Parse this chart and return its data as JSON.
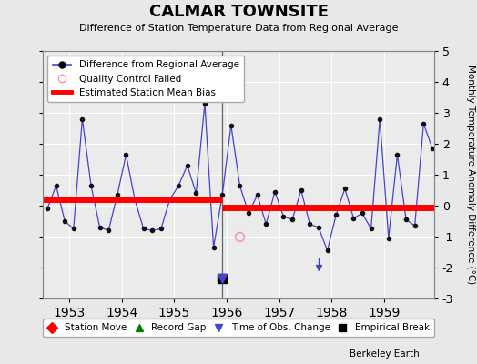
{
  "title": "CALMAR TOWNSITE",
  "subtitle": "Difference of Station Temperature Data from Regional Average",
  "ylabel": "Monthly Temperature Anomaly Difference (°C)",
  "credit": "Berkeley Earth",
  "ylim": [
    -3,
    5
  ],
  "xlim": [
    1952.5,
    1959.95
  ],
  "yticks": [
    -3,
    -2,
    -1,
    0,
    1,
    2,
    3,
    4,
    5
  ],
  "xticks": [
    1953,
    1954,
    1955,
    1956,
    1957,
    1958,
    1959
  ],
  "bg_color": "#e8e8e8",
  "plot_bg_color": "#ebebeb",
  "line_color": "#4444cc",
  "marker_color": "#111111",
  "bias1_y": 0.22,
  "bias1_x_start": 1952.5,
  "bias1_x_end": 1955.92,
  "bias2_y": -0.07,
  "bias2_x_start": 1955.92,
  "bias2_x_end": 1959.95,
  "break_x": 1955.92,
  "break_y_marker": -2.35,
  "qc_fail_x": 1956.25,
  "qc_fail_y": -1.0,
  "time_change_x": 1955.92,
  "time_change_y": -2.35,
  "obs_change2_x": 1957.75,
  "obs_change2_y": -2.0,
  "data_x": [
    1952.583,
    1952.75,
    1952.917,
    1953.083,
    1953.25,
    1953.417,
    1953.583,
    1953.75,
    1953.917,
    1954.083,
    1954.25,
    1954.417,
    1954.583,
    1954.75,
    1954.917,
    1955.083,
    1955.25,
    1955.417,
    1955.583,
    1955.75,
    1955.917,
    1956.083,
    1956.25,
    1956.417,
    1956.583,
    1956.75,
    1956.917,
    1957.083,
    1957.25,
    1957.417,
    1957.583,
    1957.75,
    1957.917,
    1958.083,
    1958.25,
    1958.417,
    1958.583,
    1958.75,
    1958.917,
    1959.083,
    1959.25,
    1959.417,
    1959.583,
    1959.75,
    1959.917
  ],
  "data_y": [
    -0.1,
    0.65,
    -0.5,
    -0.75,
    2.8,
    0.65,
    -0.7,
    -0.8,
    0.35,
    1.65,
    0.2,
    -0.75,
    -0.8,
    -0.75,
    0.2,
    0.65,
    1.3,
    0.4,
    3.3,
    -1.35,
    0.35,
    2.6,
    0.65,
    -0.25,
    0.35,
    -0.6,
    0.45,
    -0.35,
    -0.45,
    0.5,
    -0.6,
    -0.7,
    -1.45,
    -0.3,
    0.55,
    -0.4,
    -0.25,
    -0.75,
    2.8,
    -1.05,
    1.65,
    -0.45,
    -0.65,
    2.65,
    1.85
  ]
}
